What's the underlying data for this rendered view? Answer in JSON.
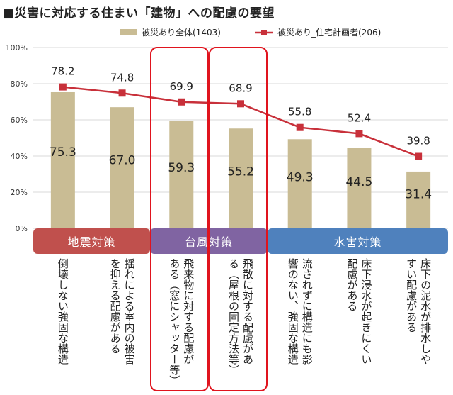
{
  "title": "■災害に対応する住まい「建物」への配慮の要望",
  "chart_data": {
    "type": "bar",
    "categories": [
      "倒壊しない強固な構造",
      "揺れによる室内の被害\nを抑える配慮がある",
      "飛来物に対する配慮が\nある（窓にシャッター等）",
      "飛散に対する配慮があ\nる（屋根の固定方法等）",
      "流されずに構造にも影\n響のない、強固な構造",
      "床下浸水が起きにくい\n配慮がある",
      "床下の泥水が排水しや\nすい配慮がある"
    ],
    "series": [
      {
        "name": "被災あり全体(1403)",
        "type": "bar",
        "values": [
          75.3,
          67.0,
          59.3,
          55.2,
          49.3,
          44.5,
          31.4
        ],
        "color": "#c9bc94"
      },
      {
        "name": "被災あり_住宅計画者(206)",
        "type": "line",
        "values": [
          78.2,
          74.8,
          69.9,
          68.9,
          55.8,
          52.4,
          39.8
        ],
        "color": "#c8303a"
      }
    ],
    "ylim": [
      0,
      100
    ],
    "yticks": [
      "0%",
      "20%",
      "40%",
      "60%",
      "80%",
      "100%"
    ],
    "grid": true,
    "legend": "top"
  },
  "groups": [
    {
      "label": "地震対策",
      "color": "#c0504d"
    },
    {
      "label": "台風対策",
      "color": "#8064a2"
    },
    {
      "label": "水害対策",
      "color": "#4f81bd"
    }
  ]
}
